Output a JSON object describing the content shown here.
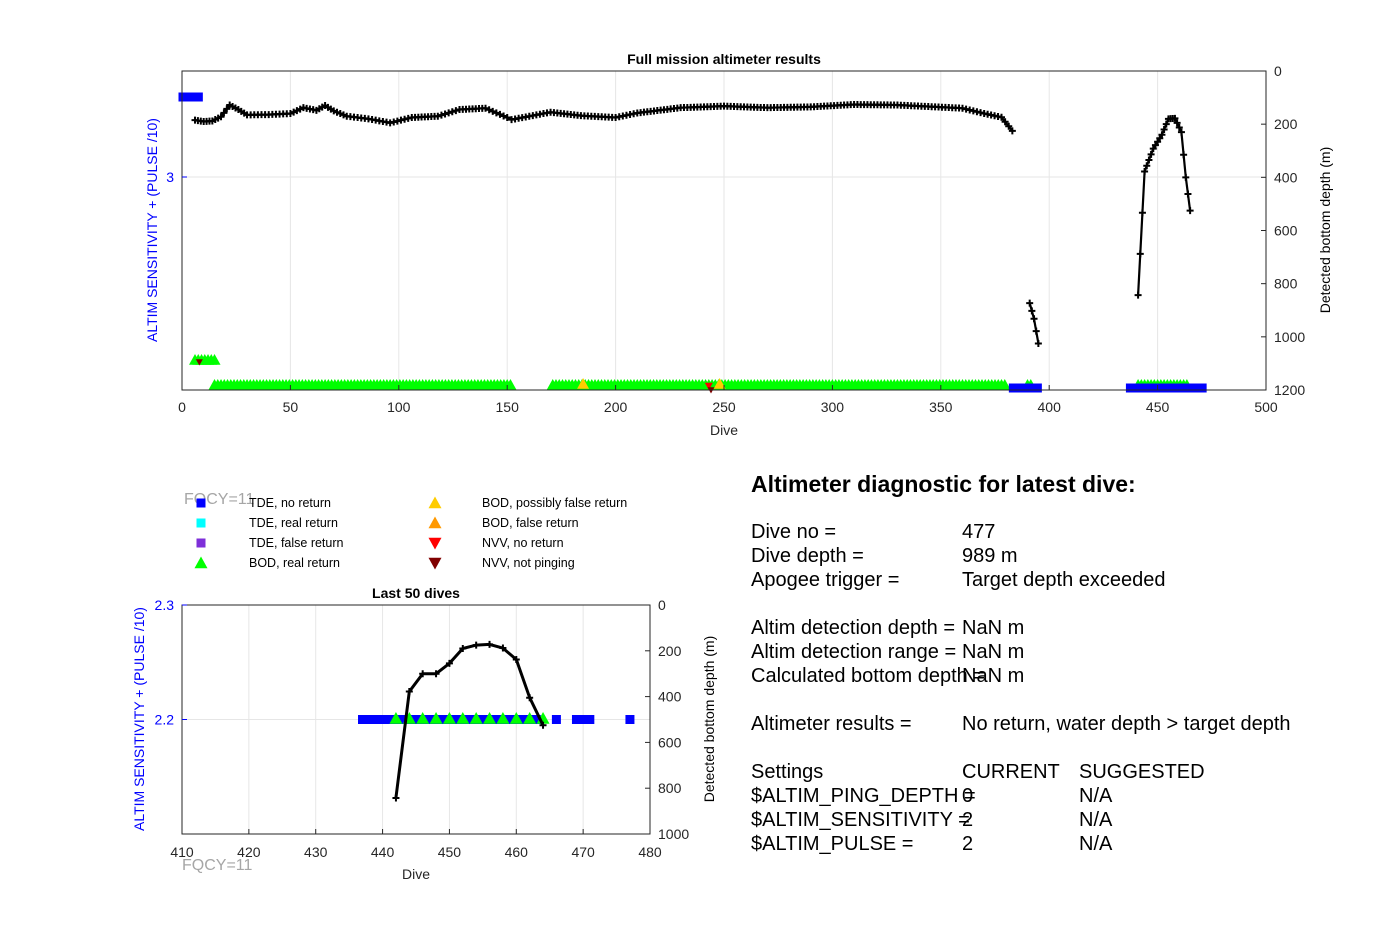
{
  "chart_data": [
    {
      "type": "scatter",
      "title": "Full mission altimeter results",
      "xlabel": "Dive",
      "ylabel": "ALTIM SENSITIVITY + (PULSE /10)",
      "y2label": "Detected bottom depth (m)",
      "xlim": [
        0,
        500
      ],
      "ylim_y2": [
        0,
        1200
      ],
      "y2_reversed": true,
      "x_ticks": [
        "0",
        "50",
        "100",
        "150",
        "200",
        "250",
        "300",
        "350",
        "400",
        "450",
        "500"
      ],
      "y_ticks": [
        "3"
      ],
      "y_tick_values": [
        3
      ],
      "y2_ticks": [
        "0",
        "200",
        "400",
        "600",
        "800",
        "1000",
        "1200"
      ],
      "grid": true,
      "bottom_depth_segments": [
        [
          [
            6,
            185
          ],
          [
            10,
            190
          ],
          [
            14,
            188
          ],
          [
            18,
            172
          ],
          [
            22,
            128
          ],
          [
            26,
            145
          ],
          [
            30,
            165
          ],
          [
            40,
            164
          ],
          [
            50,
            160
          ],
          [
            56,
            138
          ],
          [
            62,
            148
          ],
          [
            66,
            130
          ],
          [
            70,
            150
          ],
          [
            76,
            170
          ],
          [
            86,
            180
          ],
          [
            96,
            195
          ],
          [
            106,
            175
          ],
          [
            118,
            170
          ],
          [
            128,
            145
          ],
          [
            140,
            140
          ],
          [
            150,
            175
          ],
          [
            152,
            183
          ],
          [
            170,
            155
          ],
          [
            184,
            168
          ],
          [
            200,
            175
          ],
          [
            210,
            158
          ],
          [
            230,
            138
          ],
          [
            250,
            132
          ],
          [
            270,
            138
          ],
          [
            290,
            135
          ],
          [
            310,
            126
          ],
          [
            330,
            128
          ],
          [
            360,
            140
          ],
          [
            370,
            160
          ],
          [
            378,
            174
          ],
          [
            383,
            225
          ]
        ],
        [
          [
            391,
            873
          ],
          [
            393,
            932
          ],
          [
            395,
            1025
          ]
        ],
        [
          [
            441,
            843
          ],
          [
            444,
            378
          ],
          [
            448,
            292
          ],
          [
            452,
            240
          ],
          [
            455,
            180
          ],
          [
            458,
            178
          ],
          [
            461,
            230
          ],
          [
            463,
            400
          ],
          [
            465,
            525
          ]
        ]
      ],
      "events": {
        "tde_no_return_x": [
          0,
          1,
          2,
          3,
          4,
          5,
          6,
          7,
          8,
          383,
          385,
          387,
          389,
          391,
          393,
          395,
          437,
          439,
          441,
          443,
          445,
          447,
          449,
          451,
          453,
          455,
          457,
          459,
          461,
          463,
          465,
          467,
          469,
          471
        ],
        "tde_no_return_level": [
          3.3,
          3.3,
          3.3,
          3.3,
          3.3,
          3.3,
          3.3,
          3.3,
          3.3,
          2,
          2,
          2,
          2,
          2,
          2,
          2,
          2,
          2,
          2,
          2,
          2,
          2,
          2,
          2,
          2,
          2,
          2,
          2,
          2,
          2,
          2,
          2,
          2,
          2
        ],
        "bod_real_return_groups": [
          {
            "x_from": 6,
            "x_to": 16,
            "level": 2.1
          },
          {
            "x_from": 15,
            "x_to": 152,
            "level": 2.0
          },
          {
            "x_from": 171,
            "x_to": 380,
            "level": 2.0
          },
          {
            "x_from": 390,
            "x_to": 392,
            "level": 2.0
          },
          {
            "x_from": 441,
            "x_to": 464,
            "level": 2.0
          }
        ],
        "bod_possibly_false_return_x": [
          185,
          248
        ],
        "nvv_no_return_x": [
          243
        ],
        "nvv_not_pinging_x": [
          8,
          244
        ]
      },
      "annotation": "FQCY=11"
    },
    {
      "type": "scatter",
      "title": "Last 50 dives",
      "xlabel": "Dive",
      "ylabel": "ALTIM SENSITIVITY + (PULSE /10)",
      "y2label": "Detected bottom depth (m)",
      "xlim": [
        410,
        480
      ],
      "ylim": [
        2.1,
        2.3
      ],
      "ylim_y2": [
        0,
        1000
      ],
      "y2_reversed": true,
      "x_ticks": [
        "410",
        "420",
        "430",
        "440",
        "450",
        "460",
        "470",
        "480"
      ],
      "y_ticks": [
        "2.3",
        "2.2"
      ],
      "y_tick_values": [
        2.3,
        2.2
      ],
      "y2_ticks": [
        "0",
        "200",
        "400",
        "600",
        "800",
        "1000"
      ],
      "grid": true,
      "bottom_depth": [
        [
          442,
          843
        ],
        [
          444,
          378
        ],
        [
          446,
          300
        ],
        [
          448,
          300
        ],
        [
          450,
          255
        ],
        [
          452,
          190
        ],
        [
          454,
          175
        ],
        [
          456,
          172
        ],
        [
          458,
          188
        ],
        [
          460,
          238
        ],
        [
          462,
          405
        ],
        [
          464,
          525
        ]
      ],
      "tde_no_return_x": [
        437,
        438,
        439,
        440,
        441,
        442,
        443,
        444,
        445,
        446,
        447,
        448,
        449,
        450,
        451,
        452,
        453,
        454,
        455,
        456,
        457,
        458,
        459,
        460,
        461,
        462,
        463,
        466,
        469,
        470,
        471,
        477
      ],
      "tde_no_return_level": 2.2,
      "bod_real_return_x": [
        442,
        444,
        446,
        448,
        450,
        452,
        454,
        456,
        458,
        460,
        462,
        464
      ],
      "bod_real_return_level": 2.2,
      "annotation": "FQCY=11"
    }
  ],
  "legend": {
    "placement": "between-charts",
    "items": [
      {
        "label": "TDE, no return",
        "marker": "square",
        "color": "#0000ff"
      },
      {
        "label": "TDE, real return",
        "marker": "square",
        "color": "#00ffff"
      },
      {
        "label": "TDE, false return",
        "marker": "square",
        "color": "#7e2fd9"
      },
      {
        "label": "BOD, real return",
        "marker": "triangle-up",
        "color": "#00ff00"
      },
      {
        "label": "BOD, possibly false return",
        "marker": "triangle-up",
        "color": "#ffcc00"
      },
      {
        "label": "BOD, false return",
        "marker": "triangle-up",
        "color": "#ff9900"
      },
      {
        "label": "NVV, no return",
        "marker": "triangle-down",
        "color": "#ff0000"
      },
      {
        "label": "NVV, not pinging",
        "marker": "triangle-down",
        "color": "#800000"
      }
    ]
  },
  "diagnostic": {
    "title": "Altimeter diagnostic for latest dive:",
    "rows": [
      {
        "label": "Dive no =",
        "value": "477"
      },
      {
        "label": "Dive depth =",
        "value": "989 m"
      },
      {
        "label": "Apogee trigger =",
        "value": "Target depth exceeded"
      },
      {
        "label": "Altim detection depth =",
        "value": "NaN m"
      },
      {
        "label": "Altim detection range =",
        "value": "NaN m"
      },
      {
        "label": "Calculated bottom depth =",
        "value": "NaN m"
      },
      {
        "label": "Altimeter results =",
        "value": "No return, water depth > target depth"
      }
    ],
    "settings": {
      "header": "Settings",
      "current_header": "CURRENT",
      "suggested_header": "SUGGESTED",
      "rows": [
        {
          "label": "$ALTIM_PING_DEPTH =",
          "current": "0",
          "suggested": "N/A"
        },
        {
          "label": "$ALTIM_SENSITIVITY =",
          "current": "2",
          "suggested": "N/A"
        },
        {
          "label": "$ALTIM_PULSE =",
          "current": "2",
          "suggested": "N/A"
        }
      ]
    }
  },
  "colors": {
    "axis_left": "#0000ff",
    "tde_no_return": "#0000ff",
    "bod_real_return": "#00ff00",
    "bod_possibly_false": "#ffcc00",
    "nvv_no_return": "#ff0000",
    "nvv_not_pinging": "#800000",
    "depth_line": "#000000",
    "annotation": "#a6a6a6"
  }
}
